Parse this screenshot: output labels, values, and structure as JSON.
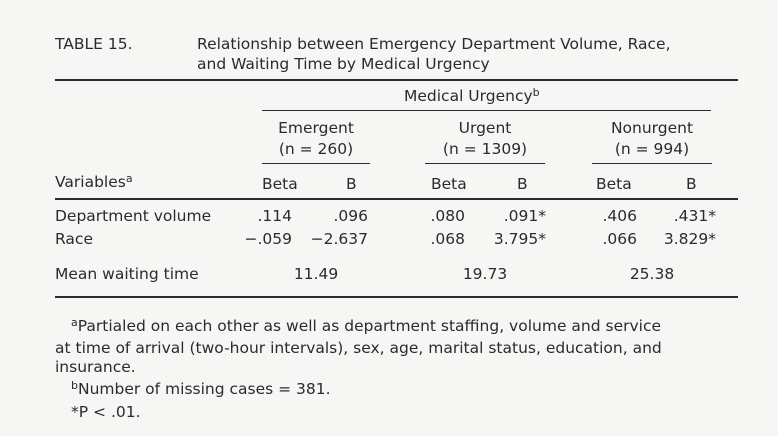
{
  "table": {
    "label": "TABLE 15.",
    "title_line1": "Relationship between Emergency Department Volume, Race,",
    "title_line2": "and Waiting Time by Medical Urgency",
    "spanner": "Medical Urgency",
    "spanner_note": "b",
    "groups": [
      {
        "name": "Emergent",
        "n": "(n = 260)"
      },
      {
        "name": "Urgent",
        "n": "(n = 1309)"
      },
      {
        "name": "Nonurgent",
        "n": "(n = 994)"
      }
    ],
    "variables_header": "Variables",
    "variables_note": "a",
    "col_beta": "Beta",
    "col_b": "B",
    "rows": [
      {
        "label": "Department volume",
        "values": [
          ".114",
          ".096",
          ".080",
          ".091*",
          ".406",
          ".431*"
        ]
      },
      {
        "label": "Race",
        "values": [
          "−.059",
          "−2.637",
          ".068",
          "3.795*",
          ".066",
          "3.829*"
        ]
      }
    ],
    "mean_row": {
      "label": "Mean waiting time",
      "values": [
        "11.49",
        "19.73",
        "25.38"
      ]
    }
  },
  "footnotes": {
    "a_mark": "a",
    "a_line1": "Partialed on each other as well as department staffing, volume and service",
    "a_line2": "at time of arrival (two-hour intervals), sex, age, marital status, education, and",
    "a_line3": "insurance.",
    "b_mark": "b",
    "b_text": "Number of missing cases = 381.",
    "star": "*P < .01."
  }
}
